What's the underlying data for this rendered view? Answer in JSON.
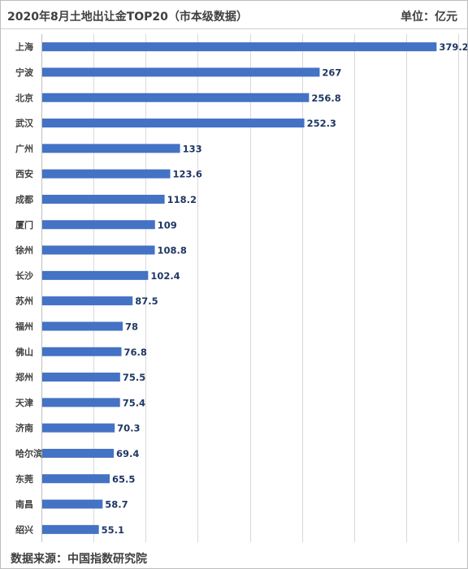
{
  "header": {
    "title": "2020年8月土地出让金TOP20（市本级数据）",
    "unit": "单位：亿元"
  },
  "footer": {
    "source": "数据来源：中国指数研究院"
  },
  "chart_data": {
    "type": "bar",
    "orientation": "horizontal",
    "title": "2020年8月土地出让金TOP20（市本级数据）",
    "unit": "单位：亿元",
    "categories": [
      "上海",
      "宁波",
      "北京",
      "武汉",
      "广州",
      "西安",
      "成都",
      "厦门",
      "徐州",
      "长沙",
      "苏州",
      "福州",
      "佛山",
      "郑州",
      "天津",
      "济南",
      "哈尔滨",
      "东莞",
      "南昌",
      "绍兴"
    ],
    "values": [
      379.2,
      267,
      256.8,
      252.3,
      133,
      123.6,
      118.2,
      109,
      108.8,
      102.4,
      87.5,
      78,
      76.8,
      75.5,
      75.4,
      70.3,
      69.4,
      65.5,
      58.7,
      55.1
    ],
    "xlim": [
      0,
      400
    ],
    "grid": true,
    "bar_color": "#4472c4",
    "legend": "none"
  }
}
